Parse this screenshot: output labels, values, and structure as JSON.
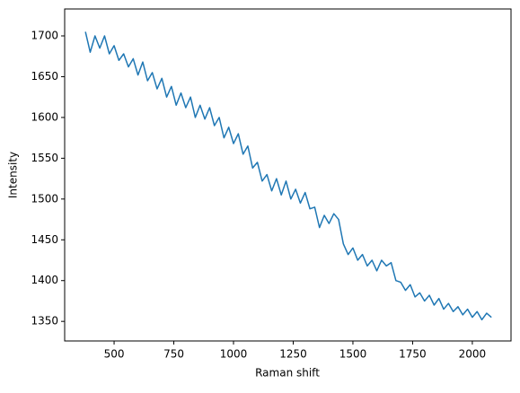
{
  "chart_data": {
    "type": "line",
    "xlabel": "Raman shift",
    "ylabel": "Intensity",
    "xlim": [
      293,
      2162
    ],
    "ylim": [
      1326,
      1733
    ],
    "xticks": [
      500,
      750,
      1000,
      1250,
      1500,
      1750,
      2000
    ],
    "yticks": [
      1350,
      1400,
      1450,
      1500,
      1550,
      1600,
      1650,
      1700
    ],
    "grid": false,
    "series": [
      {
        "color": "#1f77b4",
        "x": [
          380,
          400,
          420,
          440,
          460,
          480,
          500,
          520,
          540,
          560,
          580,
          600,
          620,
          640,
          660,
          680,
          700,
          720,
          740,
          760,
          780,
          800,
          820,
          840,
          860,
          880,
          900,
          920,
          940,
          960,
          980,
          1000,
          1020,
          1040,
          1060,
          1080,
          1100,
          1120,
          1140,
          1160,
          1180,
          1200,
          1220,
          1240,
          1260,
          1280,
          1300,
          1320,
          1340,
          1360,
          1380,
          1400,
          1420,
          1440,
          1460,
          1480,
          1500,
          1520,
          1540,
          1560,
          1580,
          1600,
          1620,
          1640,
          1660,
          1680,
          1700,
          1720,
          1740,
          1760,
          1780,
          1800,
          1820,
          1840,
          1860,
          1880,
          1900,
          1920,
          1940,
          1960,
          1980,
          2000,
          2020,
          2040,
          2060,
          2080
        ],
        "values": [
          1705,
          1680,
          1700,
          1685,
          1700,
          1678,
          1688,
          1670,
          1678,
          1662,
          1672,
          1652,
          1668,
          1645,
          1655,
          1635,
          1648,
          1625,
          1638,
          1615,
          1630,
          1612,
          1625,
          1600,
          1615,
          1598,
          1612,
          1590,
          1600,
          1575,
          1588,
          1568,
          1580,
          1555,
          1565,
          1538,
          1545,
          1522,
          1530,
          1510,
          1525,
          1505,
          1522,
          1500,
          1512,
          1495,
          1508,
          1488,
          1490,
          1465,
          1480,
          1470,
          1482,
          1475,
          1445,
          1432,
          1440,
          1425,
          1432,
          1418,
          1425,
          1412,
          1425,
          1418,
          1422,
          1400,
          1398,
          1388,
          1395,
          1380,
          1385,
          1375,
          1382,
          1370,
          1378,
          1365,
          1372,
          1362,
          1368,
          1358,
          1365,
          1355,
          1362,
          1352,
          1360,
          1355
        ]
      }
    ]
  }
}
